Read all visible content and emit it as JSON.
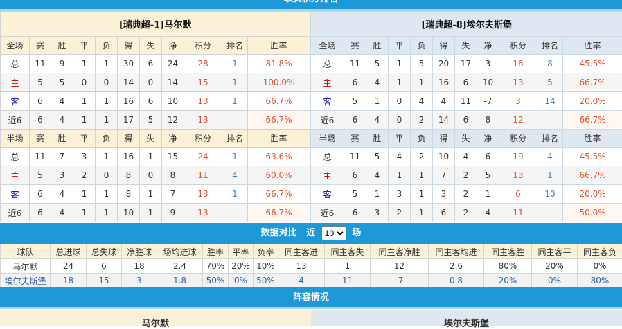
{
  "section_title": "联赛积分排名",
  "columns_full": [
    "全场",
    "赛",
    "胜",
    "平",
    "负",
    "得",
    "失",
    "净",
    "积分",
    "排名",
    "胜率"
  ],
  "columns_half": [
    "半场",
    "赛",
    "胜",
    "平",
    "负",
    "得",
    "失",
    "净",
    "积分",
    "排名",
    "胜率"
  ],
  "home": {
    "title": "[瑞典超-1]马尔默",
    "full": [
      [
        "总",
        "11",
        "9",
        "1",
        "1",
        "30",
        "6",
        "24",
        "28",
        "1",
        "81.8%"
      ],
      [
        "主",
        "5",
        "5",
        "0",
        "0",
        "14",
        "0",
        "14",
        "15",
        "1",
        "100.0%"
      ],
      [
        "客",
        "6",
        "4",
        "1",
        "1",
        "16",
        "6",
        "10",
        "13",
        "1",
        "66.7%"
      ],
      [
        "近6",
        "6",
        "4",
        "1",
        "1",
        "17",
        "5",
        "12",
        "13",
        "",
        "66.7%"
      ]
    ],
    "half": [
      [
        "总",
        "11",
        "7",
        "3",
        "1",
        "16",
        "1",
        "15",
        "24",
        "1",
        "63.6%"
      ],
      [
        "主",
        "5",
        "3",
        "2",
        "0",
        "8",
        "0",
        "8",
        "11",
        "4",
        "60.0%"
      ],
      [
        "客",
        "6",
        "4",
        "1",
        "1",
        "8",
        "1",
        "7",
        "13",
        "1",
        "66.7%"
      ],
      [
        "近6",
        "6",
        "4",
        "1",
        "1",
        "10",
        "1",
        "9",
        "13",
        "",
        "66.7%"
      ]
    ]
  },
  "away": {
    "title": "[瑞典超-8]埃尔夫斯堡",
    "full": [
      [
        "总",
        "11",
        "5",
        "1",
        "5",
        "20",
        "17",
        "3",
        "16",
        "8",
        "45.5%"
      ],
      [
        "主",
        "6",
        "4",
        "1",
        "1",
        "16",
        "6",
        "10",
        "13",
        "5",
        "66.7%"
      ],
      [
        "客",
        "5",
        "1",
        "0",
        "4",
        "4",
        "11",
        "-7",
        "3",
        "14",
        "20.0%"
      ],
      [
        "近6",
        "6",
        "4",
        "0",
        "2",
        "14",
        "6",
        "8",
        "12",
        "",
        "66.7%"
      ]
    ],
    "half": [
      [
        "总",
        "11",
        "5",
        "4",
        "2",
        "10",
        "4",
        "6",
        "19",
        "4",
        "45.5%"
      ],
      [
        "主",
        "6",
        "4",
        "1",
        "1",
        "7",
        "2",
        "5",
        "13",
        "1",
        "66.7%"
      ],
      [
        "客",
        "5",
        "1",
        "3",
        "1",
        "3",
        "2",
        "1",
        "6",
        "10",
        "20.0%"
      ],
      [
        "近6",
        "6",
        "3",
        "2",
        "1",
        "6",
        "2",
        "4",
        "11",
        "",
        "50.0%"
      ]
    ]
  },
  "compare": {
    "title": "数据对比",
    "prefix": "近",
    "selected": "10",
    "suffix": "场",
    "headers": [
      "球队",
      "总进球",
      "总失球",
      "净胜球",
      "场均进球",
      "胜率",
      "平率",
      "负率",
      "同主客进",
      "同主客失",
      "同主客净胜",
      "同主客均进",
      "同主客胜",
      "同主客平",
      "同主客负"
    ],
    "rows": [
      [
        "马尔默",
        "24",
        "6",
        "18",
        "2.4",
        "70%",
        "20%",
        "10%",
        "13",
        "1",
        "12",
        "2.6",
        "80%",
        "20%",
        "0%"
      ],
      [
        "埃尔夫斯堡",
        "18",
        "15",
        "3",
        "1.8",
        "50%",
        "0%",
        "50%",
        "4",
        "11",
        "-7",
        "0.8",
        "20%",
        "0%",
        "80%"
      ]
    ]
  },
  "lineup": {
    "title": "阵容情况",
    "home": "马尔默",
    "away": "埃尔夫斯堡"
  },
  "colors": {
    "bar": "#1e98d6",
    "points": "#e0502d",
    "rank": "#3d7fbf",
    "home_label": "#cc0000",
    "away_label": "#0000aa"
  }
}
